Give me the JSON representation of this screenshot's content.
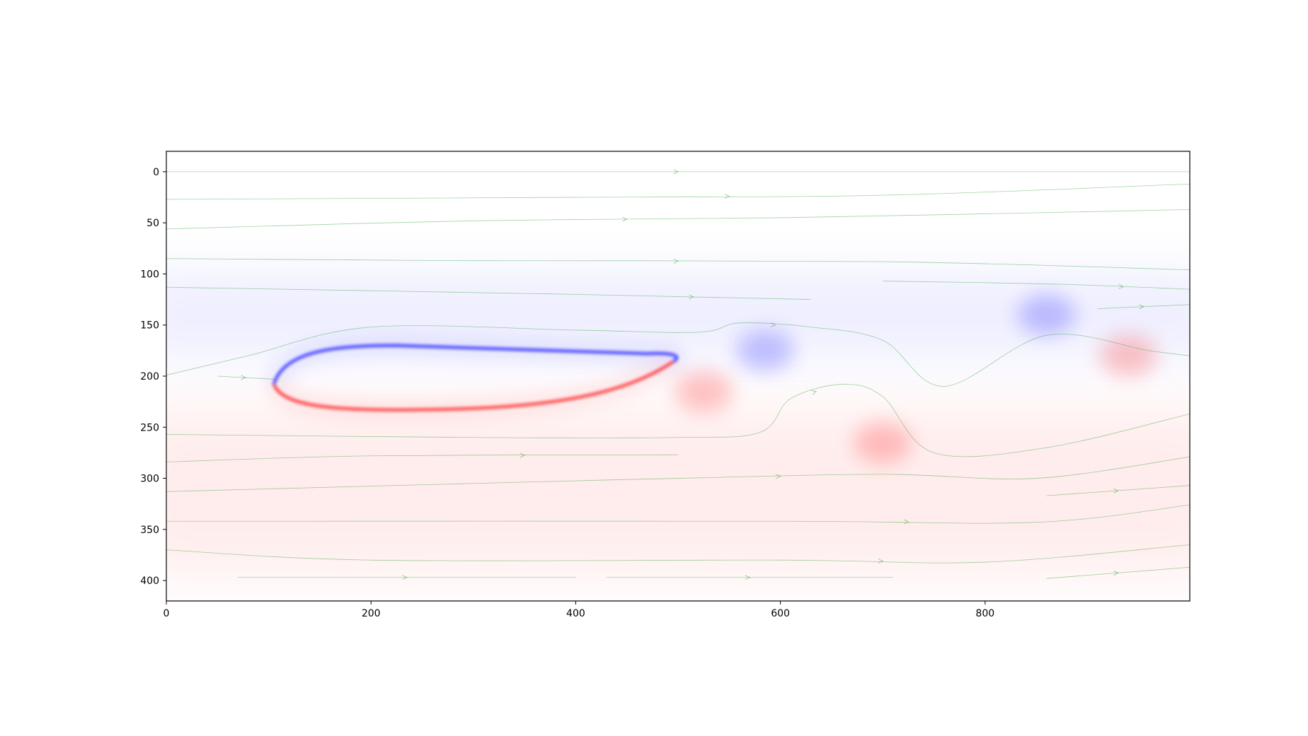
{
  "chart_data": {
    "type": "heatmap",
    "title": "",
    "xlabel": "",
    "ylabel": "",
    "xlim": [
      0,
      1000
    ],
    "ylim": [
      420,
      -20
    ],
    "y_axis_inverted": true,
    "x_ticks": [
      0,
      200,
      400,
      600,
      800
    ],
    "y_ticks": [
      0,
      50,
      100,
      150,
      200,
      250,
      300,
      350,
      400
    ],
    "x_tick_labels": [
      "0",
      "200",
      "400",
      "600",
      "800"
    ],
    "y_tick_labels": [
      "0",
      "50",
      "100",
      "150",
      "200",
      "250",
      "300",
      "350",
      "400"
    ],
    "grid": false,
    "colormap": "diverging blue-white-red",
    "colors": {
      "positive": "#ff0000",
      "negative": "#0000ff",
      "neutral": "#ffffff",
      "streamline": "#2ca02c",
      "axis": "#000000"
    },
    "obstacle": {
      "shape": "elongated ellipse",
      "leading_edge": [
        105,
        208
      ],
      "trailing_edge": [
        500,
        180
      ],
      "top_y": 170,
      "bottom_y": 233
    },
    "vortices": [
      {
        "x": 585,
        "y": 175,
        "sign": "negative"
      },
      {
        "x": 525,
        "y": 215,
        "sign": "positive"
      },
      {
        "x": 700,
        "y": 265,
        "sign": "positive"
      },
      {
        "x": 860,
        "y": 140,
        "sign": "negative"
      },
      {
        "x": 940,
        "y": 180,
        "sign": "positive"
      }
    ],
    "background_regions": [
      {
        "y_range": [
          100,
          180
        ],
        "sign": "negative",
        "strength": "faint"
      },
      {
        "y_range": [
          230,
          395
        ],
        "sign": "positive",
        "strength": "faint"
      }
    ],
    "streamlines": [
      [
        [
          0,
          0
        ],
        [
          1000,
          0
        ]
      ],
      [
        [
          0,
          27
        ],
        [
          400,
          25
        ],
        [
          700,
          23
        ],
        [
          1000,
          12
        ]
      ],
      [
        [
          0,
          56
        ],
        [
          300,
          48
        ],
        [
          600,
          45
        ],
        [
          1000,
          37
        ]
      ],
      [
        [
          0,
          85
        ],
        [
          300,
          87
        ],
        [
          700,
          88
        ],
        [
          1000,
          96
        ]
      ],
      [
        [
          0,
          113
        ],
        [
          400,
          120
        ],
        [
          630,
          125
        ]
      ],
      [
        [
          0,
          199
        ],
        [
          80,
          180
        ],
        [
          200,
          152
        ],
        [
          400,
          155
        ],
        [
          520,
          157
        ],
        [
          560,
          148
        ],
        [
          630,
          152
        ],
        [
          700,
          165
        ],
        [
          760,
          210
        ],
        [
          860,
          160
        ],
        [
          960,
          175
        ],
        [
          1000,
          180
        ]
      ],
      [
        [
          50,
          200
        ],
        [
          105,
          203
        ]
      ],
      [
        [
          0,
          257
        ],
        [
          300,
          260
        ],
        [
          500,
          260
        ],
        [
          580,
          255
        ],
        [
          610,
          222
        ],
        [
          660,
          208
        ],
        [
          700,
          220
        ],
        [
          750,
          275
        ],
        [
          860,
          270
        ],
        [
          1000,
          237
        ]
      ],
      [
        [
          0,
          284
        ],
        [
          200,
          278
        ],
        [
          500,
          277
        ]
      ],
      [
        [
          0,
          313
        ],
        [
          300,
          305
        ],
        [
          500,
          300
        ],
        [
          700,
          296
        ],
        [
          850,
          300
        ],
        [
          1000,
          279
        ]
      ],
      [
        [
          0,
          342
        ],
        [
          600,
          342
        ],
        [
          850,
          343
        ],
        [
          1000,
          326
        ]
      ],
      [
        [
          0,
          370
        ],
        [
          200,
          380
        ],
        [
          600,
          380
        ],
        [
          800,
          382
        ],
        [
          1000,
          365
        ]
      ],
      [
        [
          70,
          397
        ],
        [
          400,
          397
        ]
      ],
      [
        [
          430,
          397
        ],
        [
          710,
          397
        ]
      ],
      [
        [
          860,
          317
        ],
        [
          1000,
          307
        ]
      ],
      [
        [
          860,
          398
        ],
        [
          1000,
          387
        ]
      ],
      [
        [
          700,
          107
        ],
        [
          870,
          110
        ],
        [
          1000,
          115
        ]
      ],
      [
        [
          910,
          134
        ],
        [
          1000,
          130
        ]
      ]
    ]
  }
}
